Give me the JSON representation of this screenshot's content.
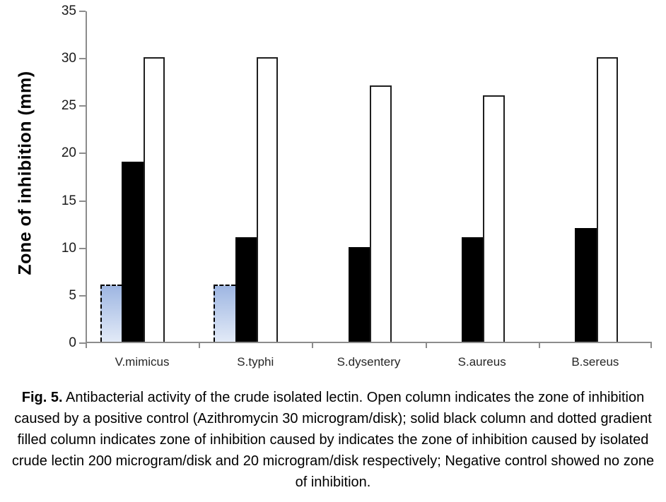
{
  "figure": {
    "caption": {
      "fig_label": "Fig. 5.",
      "text": "Antibacterial activity of the crude isolated lectin. Open column indicates the zone of inhibition caused by a positive control (Azithromycin 30 microgram/disk); solid black column and dotted gradient filled column indicates zone of inhibition caused by indicates the zone of inhibition caused by isolated crude lectin 200 microgram/disk and 20 microgram/disk respectively; Negative control showed no zone of inhibition."
    }
  },
  "chart_data": {
    "type": "bar",
    "title": "",
    "xlabel": "",
    "ylabel": "Zone of inhibition  (mm)",
    "ylim": [
      0,
      35
    ],
    "yticks": [
      0,
      5,
      10,
      15,
      20,
      25,
      30,
      35
    ],
    "grid": false,
    "legend_position": "none",
    "axis_color": "#8c8c8c",
    "categories": [
      "V.mimicus",
      "S.typhi",
      "S.dysentery",
      "S.aureus",
      "B.sereus"
    ],
    "series": [
      {
        "name": "Isolated crude lectin 20 microgram/disk (dotted gradient filled column)",
        "style": "gradient-dashed",
        "values": [
          6,
          6,
          0,
          0,
          0
        ],
        "colors": {
          "top": "#9eb6e2",
          "bottom": "#e2eaf7",
          "border": "#000000"
        }
      },
      {
        "name": "Isolated crude lectin 200 microgram/disk (solid black column)",
        "style": "solid-black",
        "values": [
          19,
          11,
          10,
          11,
          12
        ],
        "colors": {
          "fill": "#000000"
        }
      },
      {
        "name": "Positive control Azithromycin 30 microgram/disk (open column)",
        "style": "open-white",
        "values": [
          30,
          30,
          27,
          26,
          30
        ],
        "colors": {
          "fill": "#ffffff",
          "border": "#1f1f1f"
        }
      }
    ]
  }
}
